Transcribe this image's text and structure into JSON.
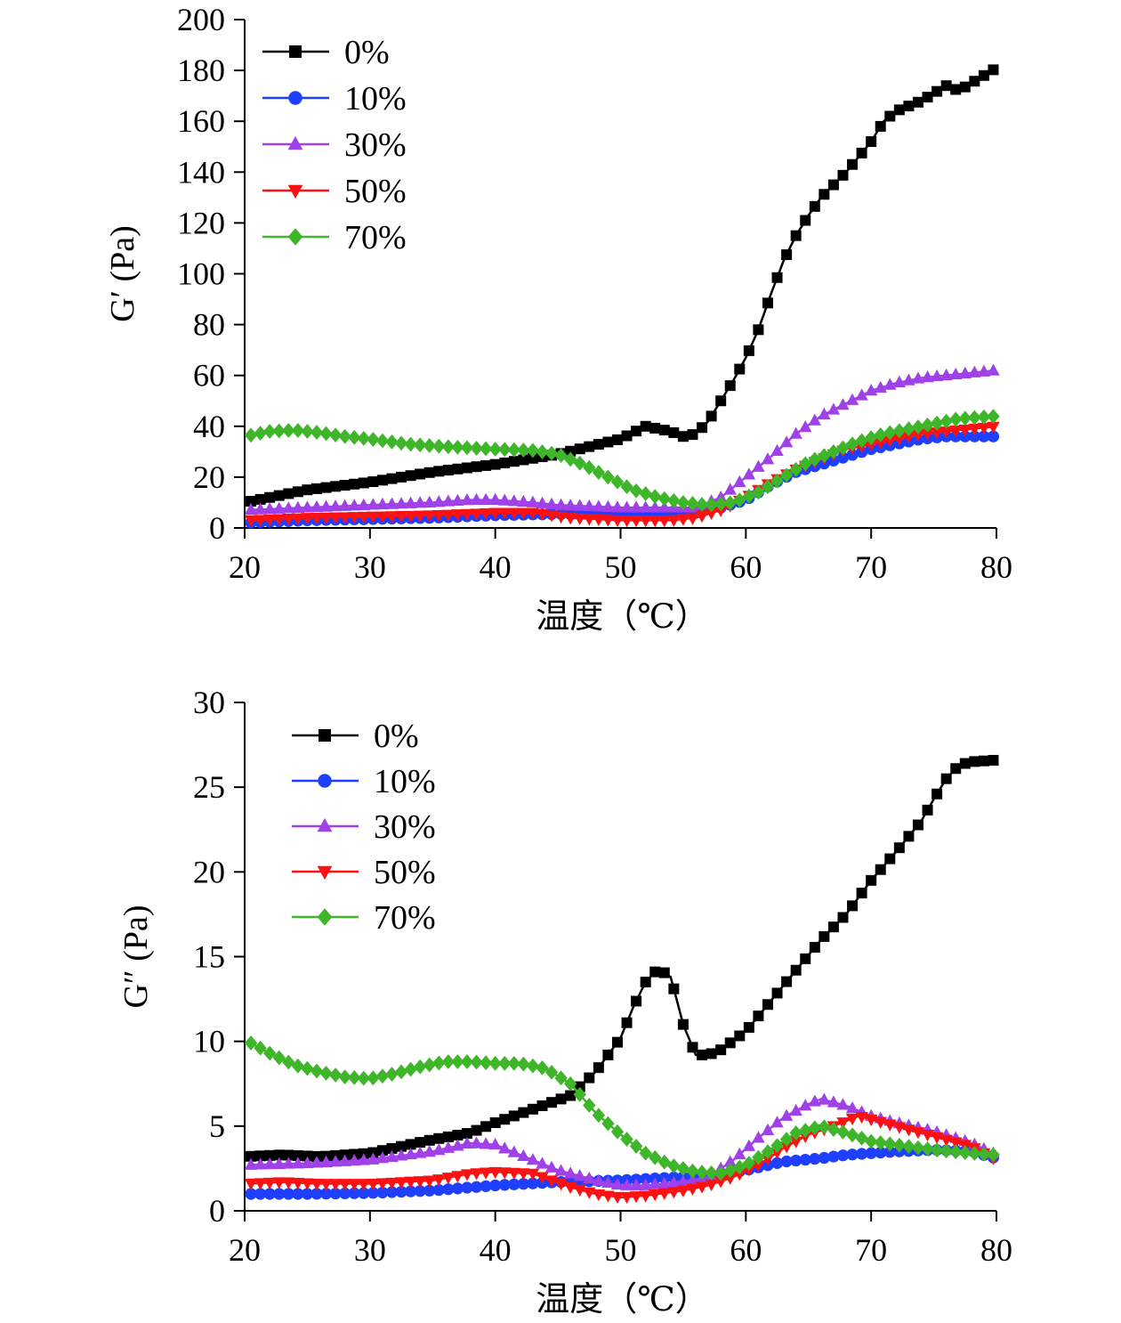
{
  "chart_data": [
    {
      "type": "line",
      "xlabel": "温度（℃）",
      "ylabel": "G′ (Pa)",
      "xlim": [
        20,
        80
      ],
      "ylim": [
        0,
        200
      ],
      "xticks": [
        "20",
        "30",
        "40",
        "50",
        "60",
        "70",
        "80"
      ],
      "yticks": [
        "0",
        "20",
        "40",
        "60",
        "80",
        "100",
        "120",
        "140",
        "160",
        "180",
        "200"
      ],
      "legend_position": "top-left",
      "series": [
        {
          "name": "0%",
          "color": "#000000",
          "marker": "square",
          "points": [
            [
              20,
              10
            ],
            [
              25,
              15
            ],
            [
              30,
              18
            ],
            [
              35,
              22
            ],
            [
              40,
              25
            ],
            [
              45,
              29
            ],
            [
              50,
              35
            ],
            [
              52,
              40
            ],
            [
              54,
              38
            ],
            [
              55,
              36
            ],
            [
              56,
              37
            ],
            [
              57,
              42
            ],
            [
              58,
              50
            ],
            [
              59,
              58
            ],
            [
              60,
              67
            ],
            [
              61,
              78
            ],
            [
              62,
              92
            ],
            [
              63,
              105
            ],
            [
              64,
              115
            ],
            [
              65,
              123
            ],
            [
              66,
              130
            ],
            [
              68,
              140
            ],
            [
              70,
              152
            ],
            [
              71,
              160
            ],
            [
              72,
              164
            ],
            [
              74,
              168
            ],
            [
              75,
              171
            ],
            [
              76,
              174
            ],
            [
              77,
              172
            ],
            [
              78,
              175
            ],
            [
              79,
              178
            ],
            [
              80,
              181
            ]
          ]
        },
        {
          "name": "10%",
          "color": "#1f3fff",
          "marker": "circle",
          "points": [
            [
              20,
              2
            ],
            [
              25,
              3
            ],
            [
              30,
              3.5
            ],
            [
              35,
              4
            ],
            [
              40,
              5
            ],
            [
              45,
              5.5
            ],
            [
              50,
              5
            ],
            [
              55,
              6
            ],
            [
              58,
              8
            ],
            [
              60,
              11
            ],
            [
              62,
              17
            ],
            [
              64,
              22
            ],
            [
              66,
              25
            ],
            [
              68,
              28
            ],
            [
              70,
              31
            ],
            [
              72,
              33
            ],
            [
              74,
              35
            ],
            [
              76,
              36
            ],
            [
              78,
              36
            ],
            [
              80,
              36
            ]
          ]
        },
        {
          "name": "30%",
          "color": "#a040e8",
          "marker": "triangle-up",
          "points": [
            [
              20,
              7
            ],
            [
              25,
              8
            ],
            [
              30,
              9
            ],
            [
              35,
              10
            ],
            [
              38,
              11
            ],
            [
              40,
              11
            ],
            [
              43,
              10
            ],
            [
              45,
              9
            ],
            [
              50,
              8
            ],
            [
              53,
              8
            ],
            [
              56,
              8
            ],
            [
              58,
              12
            ],
            [
              60,
              20
            ],
            [
              62,
              28
            ],
            [
              64,
              37
            ],
            [
              66,
              44
            ],
            [
              68,
              49
            ],
            [
              70,
              54
            ],
            [
              72,
              57
            ],
            [
              74,
              59
            ],
            [
              76,
              60
            ],
            [
              78,
              61
            ],
            [
              80,
              62
            ]
          ]
        },
        {
          "name": "50%",
          "color": "#ff1010",
          "marker": "triangle-down",
          "points": [
            [
              20,
              3
            ],
            [
              25,
              4
            ],
            [
              30,
              4.5
            ],
            [
              35,
              5
            ],
            [
              40,
              6
            ],
            [
              43,
              6
            ],
            [
              46,
              4
            ],
            [
              50,
              3
            ],
            [
              54,
              3
            ],
            [
              56,
              4
            ],
            [
              58,
              7
            ],
            [
              60,
              12
            ],
            [
              62,
              18
            ],
            [
              64,
              23
            ],
            [
              66,
              27
            ],
            [
              68,
              31
            ],
            [
              70,
              33
            ],
            [
              72,
              35
            ],
            [
              74,
              37
            ],
            [
              76,
              38
            ],
            [
              78,
              39
            ],
            [
              80,
              40
            ]
          ]
        },
        {
          "name": "70%",
          "color": "#3fb52a",
          "marker": "diamond",
          "points": [
            [
              20,
              36
            ],
            [
              22,
              38
            ],
            [
              24,
              38.5
            ],
            [
              26,
              37.5
            ],
            [
              28,
              36
            ],
            [
              30,
              35
            ],
            [
              33,
              33
            ],
            [
              36,
              32
            ],
            [
              40,
              31
            ],
            [
              43,
              30.5
            ],
            [
              45,
              29
            ],
            [
              47,
              25
            ],
            [
              49,
              20
            ],
            [
              51,
              15
            ],
            [
              53,
              12
            ],
            [
              55,
              10
            ],
            [
              57,
              9
            ],
            [
              59,
              10
            ],
            [
              61,
              14
            ],
            [
              63,
              20
            ],
            [
              65,
              26
            ],
            [
              67,
              30
            ],
            [
              69,
              34
            ],
            [
              71,
              37
            ],
            [
              73,
              39
            ],
            [
              75,
              41
            ],
            [
              77,
              43
            ],
            [
              80,
              44
            ]
          ]
        }
      ]
    },
    {
      "type": "line",
      "xlabel": "温度（℃）",
      "ylabel": "G″ (Pa)",
      "xlim": [
        20,
        80
      ],
      "ylim": [
        0,
        30
      ],
      "xticks": [
        "20",
        "30",
        "40",
        "50",
        "60",
        "70",
        "80"
      ],
      "yticks": [
        "0",
        "5",
        "10",
        "15",
        "20",
        "25",
        "30"
      ],
      "legend_position": "top-left",
      "series": [
        {
          "name": "0%",
          "color": "#000000",
          "marker": "square",
          "points": [
            [
              20,
              3.2
            ],
            [
              23,
              3.3
            ],
            [
              26,
              3.2
            ],
            [
              30,
              3.4
            ],
            [
              35,
              4.2
            ],
            [
              38,
              4.6
            ],
            [
              40,
              5.2
            ],
            [
              43,
              6.0
            ],
            [
              46,
              6.8
            ],
            [
              48,
              8.2
            ],
            [
              50,
              10.2
            ],
            [
              51,
              12.0
            ],
            [
              52,
              13.5
            ],
            [
              53,
              14.3
            ],
            [
              54,
              13.8
            ],
            [
              55,
              11.0
            ],
            [
              56,
              9.2
            ],
            [
              57,
              9.2
            ],
            [
              58,
              9.5
            ],
            [
              60,
              10.6
            ],
            [
              62,
              12.4
            ],
            [
              64,
              14.2
            ],
            [
              66,
              16.0
            ],
            [
              68,
              17.5
            ],
            [
              70,
              19.5
            ],
            [
              72,
              21.2
            ],
            [
              74,
              23.0
            ],
            [
              75,
              24.3
            ],
            [
              76,
              25.5
            ],
            [
              77,
              26.3
            ],
            [
              78,
              26.5
            ],
            [
              80,
              26.6
            ]
          ]
        },
        {
          "name": "10%",
          "color": "#1f3fff",
          "marker": "circle",
          "points": [
            [
              20,
              1.0
            ],
            [
              25,
              1.0
            ],
            [
              30,
              1.05
            ],
            [
              35,
              1.2
            ],
            [
              40,
              1.5
            ],
            [
              45,
              1.7
            ],
            [
              50,
              1.8
            ],
            [
              55,
              2.0
            ],
            [
              58,
              2.1
            ],
            [
              60,
              2.4
            ],
            [
              63,
              2.9
            ],
            [
              66,
              3.1
            ],
            [
              68,
              3.3
            ],
            [
              70,
              3.4
            ],
            [
              72,
              3.5
            ],
            [
              75,
              3.6
            ],
            [
              78,
              3.5
            ],
            [
              80,
              3.1
            ]
          ]
        },
        {
          "name": "30%",
          "color": "#a040e8",
          "marker": "triangle-up",
          "points": [
            [
              20,
              2.7
            ],
            [
              25,
              2.8
            ],
            [
              30,
              3.0
            ],
            [
              35,
              3.5
            ],
            [
              38,
              4.0
            ],
            [
              40,
              3.9
            ],
            [
              42,
              3.3
            ],
            [
              45,
              2.4
            ],
            [
              48,
              1.8
            ],
            [
              50,
              1.5
            ],
            [
              52,
              1.5
            ],
            [
              55,
              1.7
            ],
            [
              57,
              2.0
            ],
            [
              59,
              3.0
            ],
            [
              61,
              4.3
            ],
            [
              63,
              5.5
            ],
            [
              65,
              6.3
            ],
            [
              66,
              6.6
            ],
            [
              68,
              6.2
            ],
            [
              70,
              5.6
            ],
            [
              72,
              5.2
            ],
            [
              75,
              4.7
            ],
            [
              78,
              4.0
            ],
            [
              80,
              3.3
            ]
          ]
        },
        {
          "name": "50%",
          "color": "#ff1010",
          "marker": "triangle-down",
          "points": [
            [
              20,
              1.6
            ],
            [
              23,
              1.7
            ],
            [
              26,
              1.6
            ],
            [
              30,
              1.6
            ],
            [
              35,
              1.8
            ],
            [
              38,
              2.2
            ],
            [
              40,
              2.3
            ],
            [
              43,
              2.2
            ],
            [
              46,
              1.4
            ],
            [
              48,
              1.0
            ],
            [
              50,
              0.8
            ],
            [
              52,
              0.9
            ],
            [
              55,
              1.2
            ],
            [
              57,
              1.5
            ],
            [
              59,
              2.0
            ],
            [
              61,
              2.7
            ],
            [
              63,
              3.7
            ],
            [
              65,
              4.5
            ],
            [
              67,
              5.0
            ],
            [
              69,
              5.6
            ],
            [
              70,
              5.4
            ],
            [
              72,
              5.0
            ],
            [
              74,
              4.6
            ],
            [
              76,
              4.2
            ],
            [
              78,
              3.8
            ],
            [
              80,
              3.0
            ]
          ]
        },
        {
          "name": "70%",
          "color": "#3fb52a",
          "marker": "diamond",
          "points": [
            [
              20,
              10.1
            ],
            [
              22,
              9.3
            ],
            [
              24,
              8.6
            ],
            [
              26,
              8.2
            ],
            [
              28,
              7.9
            ],
            [
              30,
              7.8
            ],
            [
              32,
              8.1
            ],
            [
              34,
              8.5
            ],
            [
              36,
              8.8
            ],
            [
              38,
              8.8
            ],
            [
              40,
              8.7
            ],
            [
              42,
              8.7
            ],
            [
              44,
              8.4
            ],
            [
              46,
              7.5
            ],
            [
              48,
              5.8
            ],
            [
              50,
              4.5
            ],
            [
              52,
              3.4
            ],
            [
              54,
              2.7
            ],
            [
              56,
              2.3
            ],
            [
              58,
              2.2
            ],
            [
              60,
              2.7
            ],
            [
              62,
              3.6
            ],
            [
              64,
              4.6
            ],
            [
              66,
              5.0
            ],
            [
              68,
              4.6
            ],
            [
              70,
              4.1
            ],
            [
              72,
              3.9
            ],
            [
              75,
              3.6
            ],
            [
              78,
              3.4
            ],
            [
              80,
              3.3
            ]
          ]
        }
      ]
    }
  ]
}
